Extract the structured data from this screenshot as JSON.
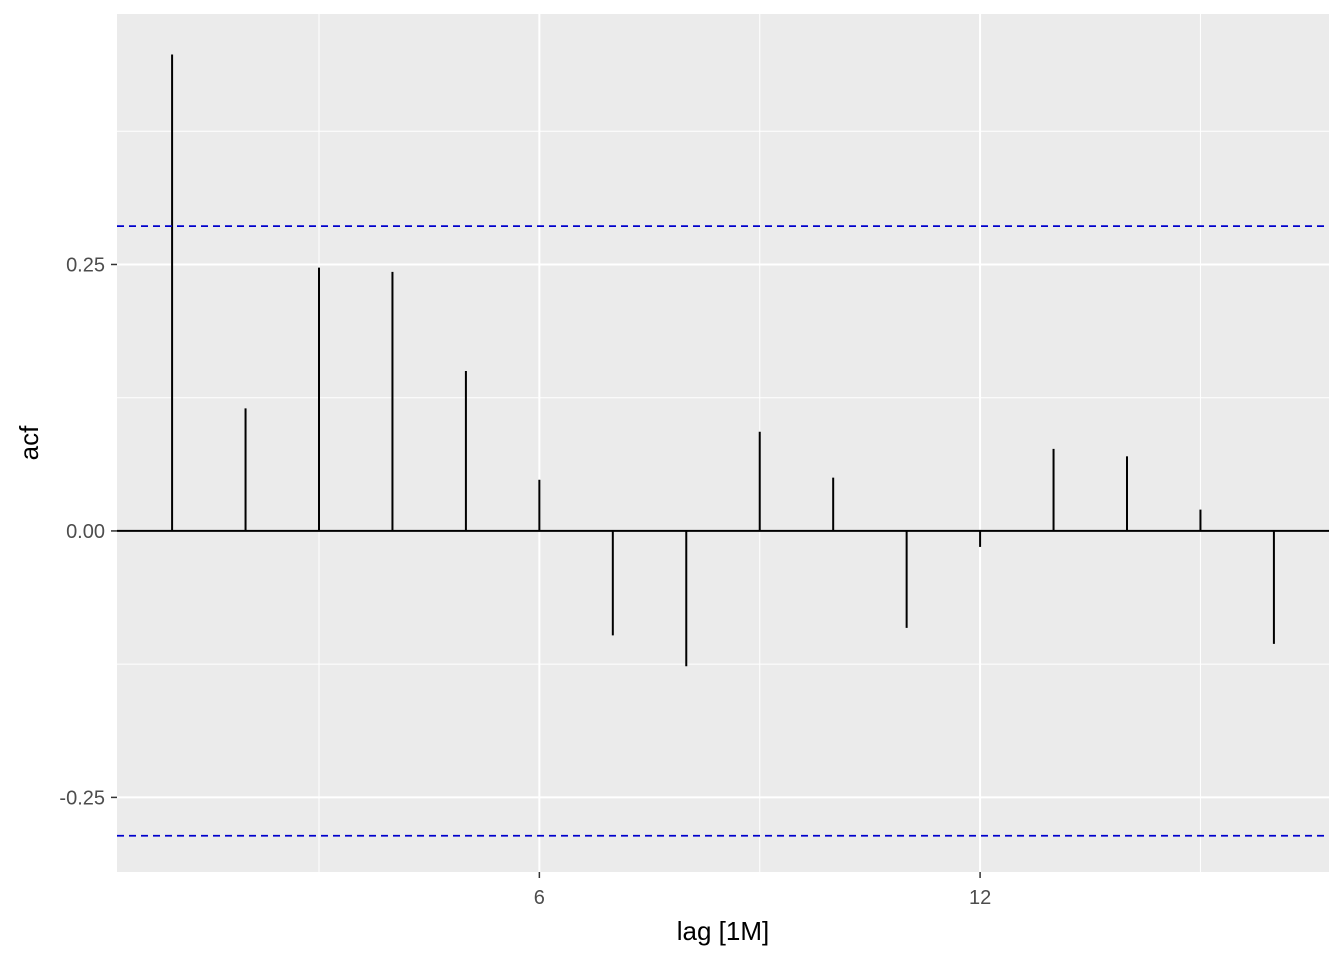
{
  "chart_data": {
    "type": "bar",
    "subtype": "acf-lollipop",
    "xlabel": "lag [1M]",
    "ylabel": "acf",
    "x": [
      1,
      2,
      3,
      4,
      5,
      6,
      7,
      8,
      9,
      10,
      11,
      12,
      13,
      14,
      15,
      16
    ],
    "values": [
      0.447,
      0.115,
      0.247,
      0.243,
      0.15,
      0.048,
      -0.098,
      -0.127,
      0.093,
      0.05,
      -0.091,
      -0.015,
      0.077,
      0.07,
      0.02,
      -0.106
    ],
    "ylim": [
      -0.32,
      0.485
    ],
    "xlim": [
      0.25,
      16.75
    ],
    "y_ticks": [
      -0.25,
      0.0,
      0.25
    ],
    "y_tick_labels": [
      "-0.25",
      "0.00",
      "0.25"
    ],
    "x_ticks": [
      6,
      12
    ],
    "x_tick_labels": [
      "6",
      "12"
    ],
    "x_minor_ticks": [
      3,
      9,
      15
    ],
    "y_minor_ticks": [
      -0.125,
      0.125,
      0.375
    ],
    "confidence_bounds": [
      0.286,
      -0.286
    ],
    "confidence_color": "#0000CC",
    "bar_color": "#000000",
    "panel_background": "#EBEBEB",
    "grid": true,
    "legend": "none"
  }
}
